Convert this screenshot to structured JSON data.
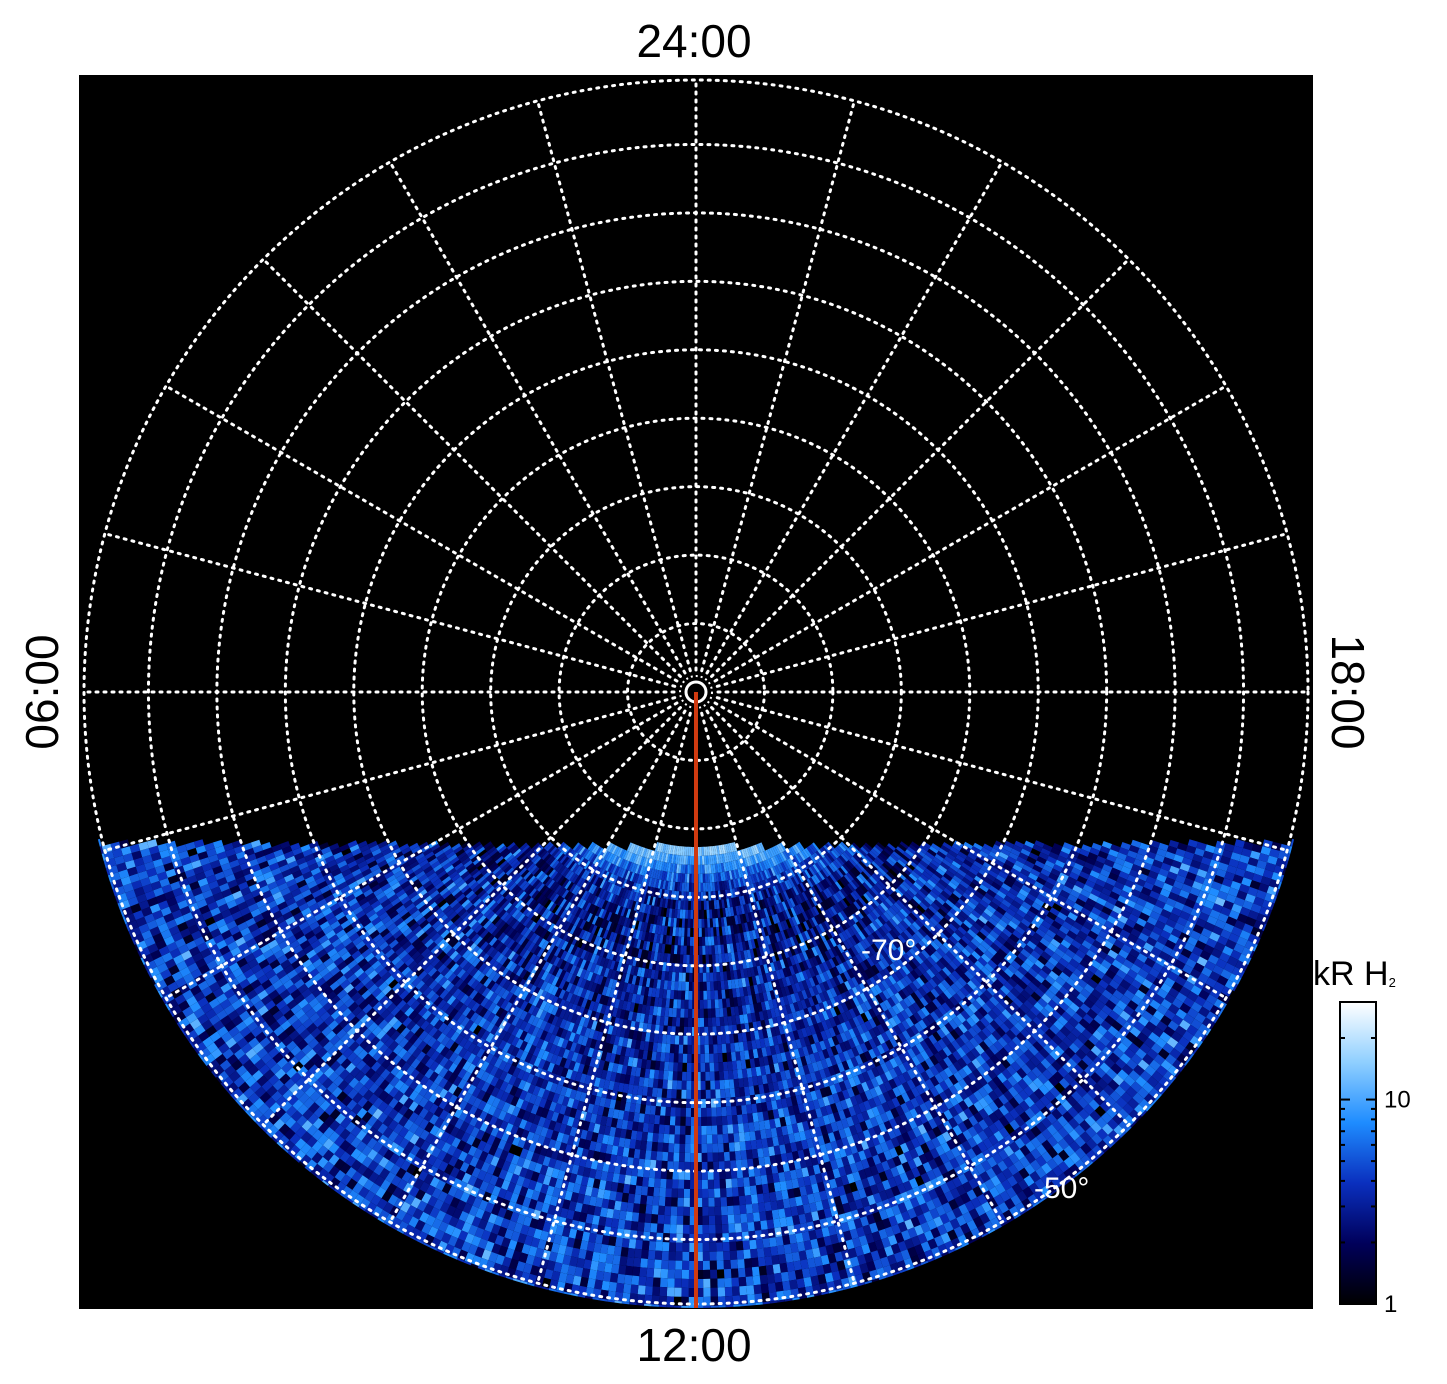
{
  "chart_data": {
    "type": "heatmap",
    "projection": "polar",
    "local_time_labels": {
      "top": "24:00",
      "bottom": "12:00",
      "left": "06:00",
      "right": "18:00"
    },
    "latitude_labels": [
      "-70°",
      "-50°"
    ],
    "colorbar": {
      "title": "kR H",
      "title_subscript": "2",
      "scale": "log",
      "range": [
        1,
        30
      ],
      "tick_labels": [
        "1",
        "10"
      ],
      "colormap": [
        "#000000",
        "#00005a",
        "#0a2fbe",
        "#1e8cff",
        "#8fcfff",
        "#ffffff"
      ]
    },
    "grid": true,
    "background_color": "#000000",
    "grid_color": "#ffffff",
    "meridian_line_color": "#d03a10",
    "meridian_local_time": "12:00",
    "emission": {
      "coverage": "dayside only, below ~ -47° latitude line at dawn/dusk",
      "main_oval_colatitude_deg": 17,
      "main_oval_peak_local_time": "12:00",
      "main_oval_brightness_kR": 25
    }
  }
}
